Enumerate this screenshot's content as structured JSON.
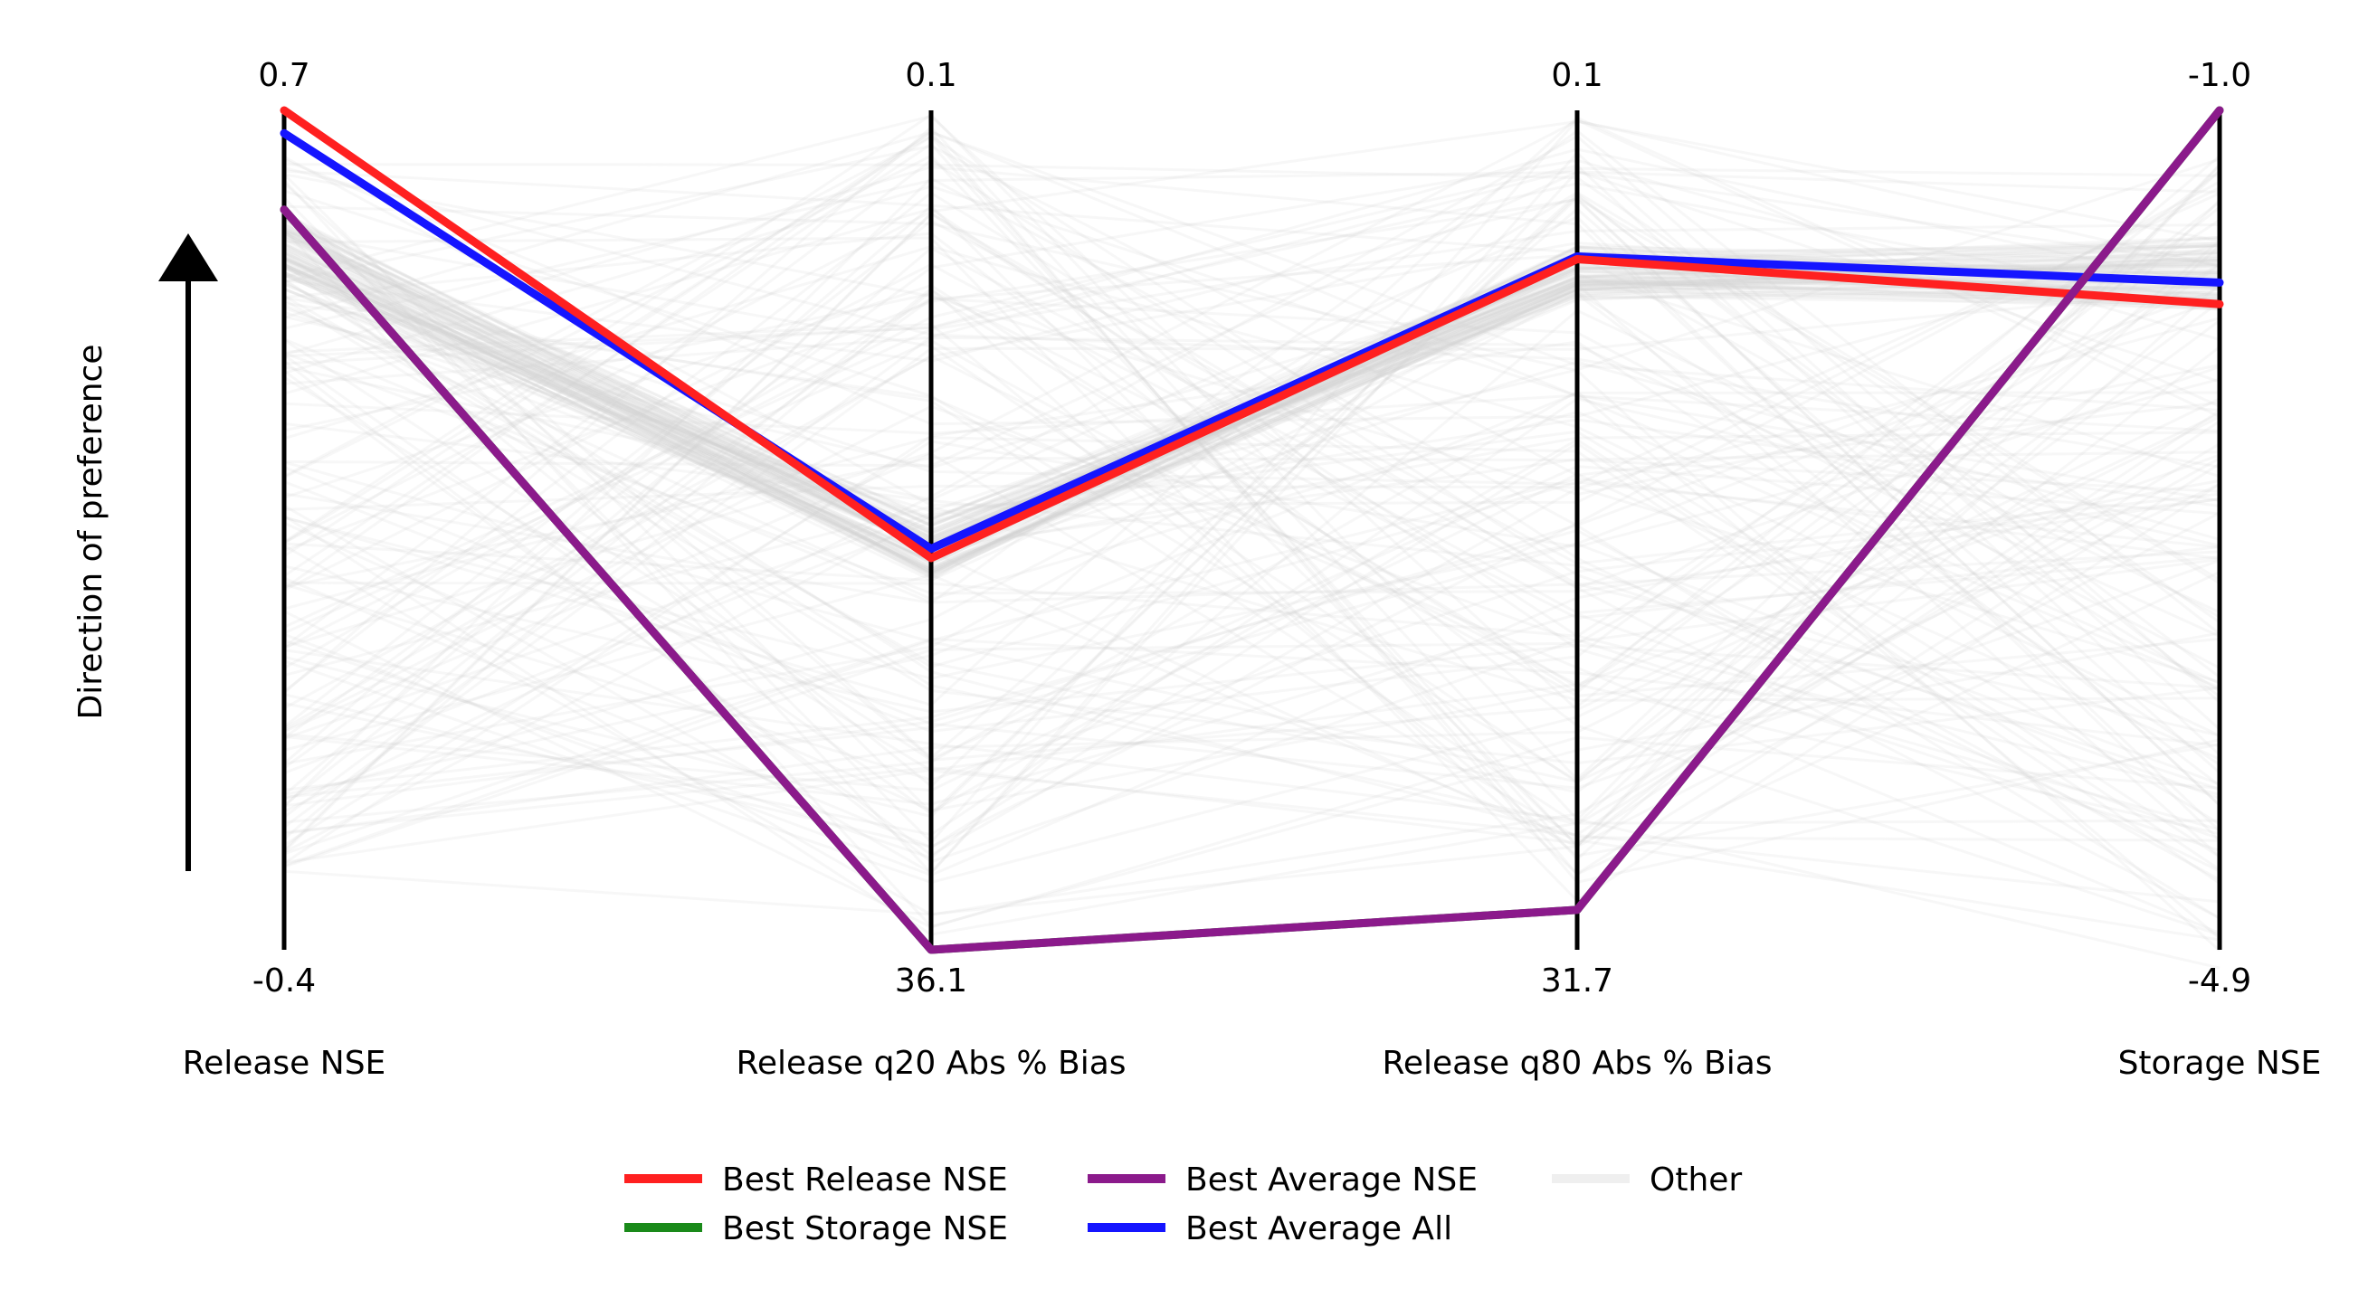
{
  "chart_data": {
    "type": "parallel-coordinates",
    "title": "",
    "preference_label": "Direction of preference",
    "axes": [
      {
        "name": "Release NSE",
        "top": "0.7",
        "bottom": "-0.4",
        "top_value": 0.7,
        "bottom_value": -0.4
      },
      {
        "name": "Release q20 Abs % Bias",
        "top": "0.1",
        "bottom": "36.1",
        "top_value": 0.1,
        "bottom_value": 36.1
      },
      {
        "name": "Release q80 Abs % Bias",
        "top": "0.1",
        "bottom": "31.7",
        "top_value": 0.1,
        "bottom_value": 31.7
      },
      {
        "name": "Storage NSE",
        "top": "-1.0",
        "bottom": "-4.9",
        "top_value": -1.0,
        "bottom_value": -4.9
      }
    ],
    "series": [
      {
        "name": "Best Release NSE",
        "color": "#ff2020",
        "values": [
          0.7,
          19.3,
          5.7,
          -1.9
        ]
      },
      {
        "name": "Best Storage NSE",
        "color": "#1a8a1a",
        "values": [
          0.57,
          36.1,
          30.2,
          -1.0
        ]
      },
      {
        "name": "Best Average NSE",
        "color": "#8b1a8b",
        "values": [
          0.57,
          36.1,
          30.2,
          -1.0
        ]
      },
      {
        "name": "Best Average All",
        "color": "#1515ff",
        "values": [
          0.67,
          18.9,
          5.6,
          -1.8
        ]
      }
    ],
    "other": {
      "name": "Other",
      "color": "#d0d0d0",
      "count": 220
    },
    "legend_position": "bottom-center",
    "grid": false
  }
}
